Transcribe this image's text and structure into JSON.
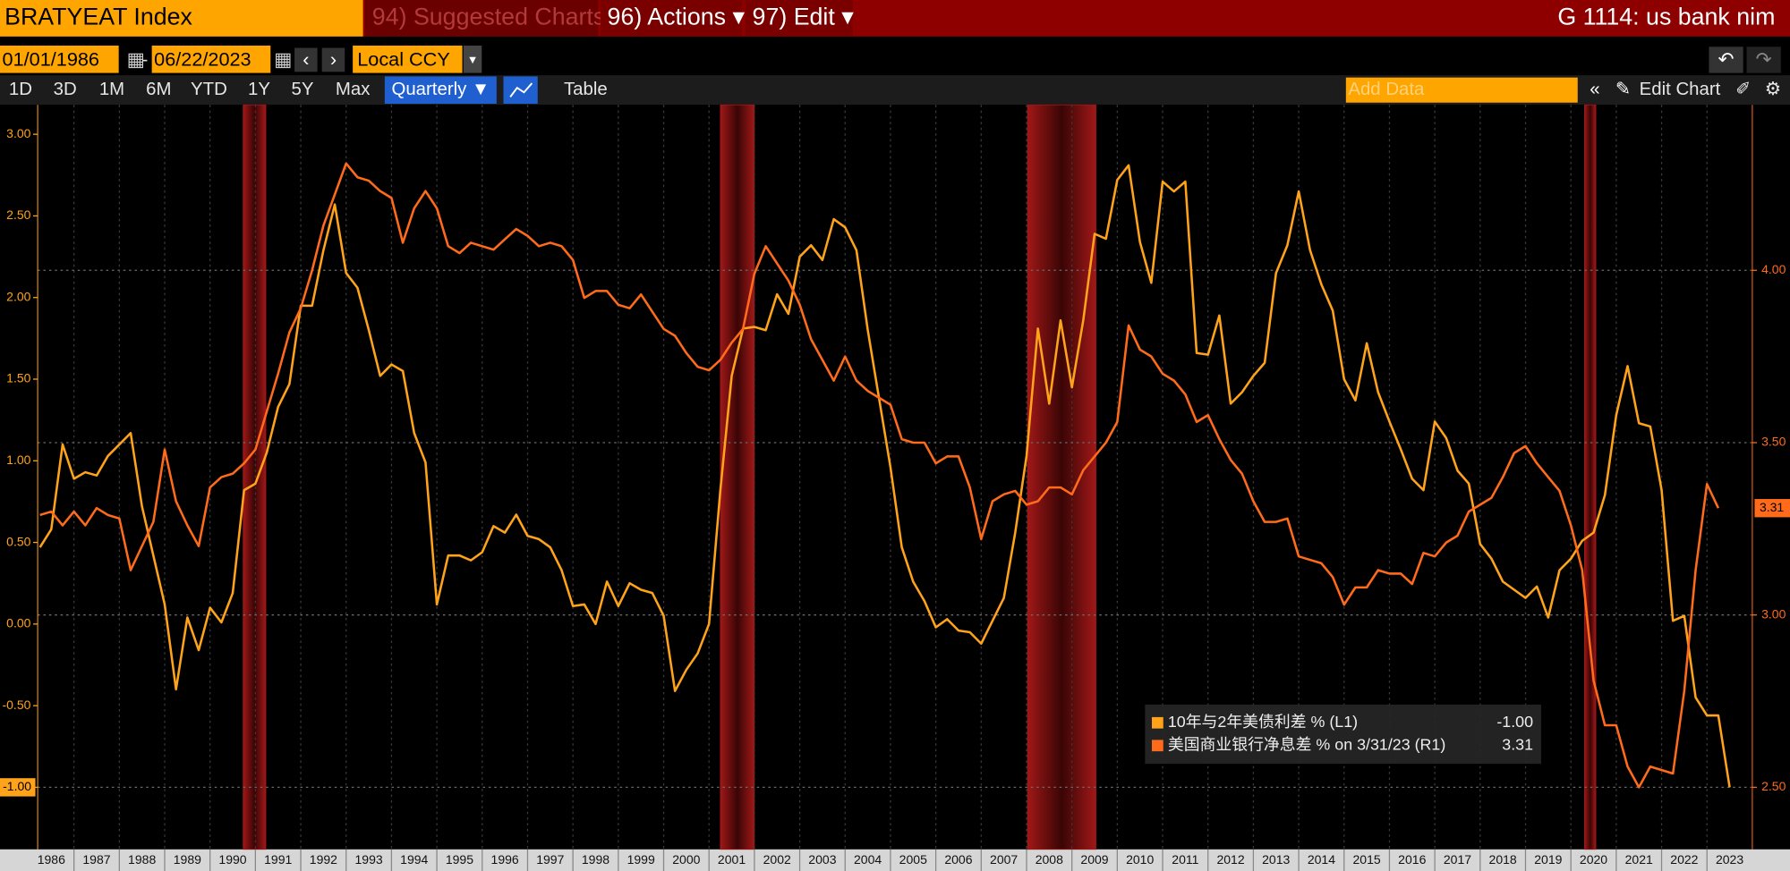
{
  "toolbar": {
    "ticker": "BRATYEAT Index",
    "suggested": "94) Suggested Charts",
    "actions": "96) Actions ▾",
    "edit": "97) Edit ▾",
    "page_title": "G 1114: us bank nim",
    "start_date": "01/01/1986",
    "date_sep": "-",
    "end_date": "06/22/2023",
    "currency": "Local CCY",
    "ranges": [
      "1D",
      "3D",
      "1M",
      "6M",
      "YTD",
      "1Y",
      "5Y",
      "Max"
    ],
    "frequency": "Quarterly ▼",
    "table": "Table",
    "add_data": "Add Data",
    "edit_chart": "Edit Chart"
  },
  "chart_data": {
    "type": "line",
    "xlim": [
      1986.2,
      2024.0
    ],
    "xticks": [
      1986,
      1987,
      1988,
      1989,
      1990,
      1991,
      1992,
      1993,
      1994,
      1995,
      1996,
      1997,
      1998,
      1999,
      2000,
      2001,
      2002,
      2003,
      2004,
      2005,
      2006,
      2007,
      2008,
      2009,
      2010,
      2011,
      2012,
      2013,
      2014,
      2015,
      2016,
      2017,
      2018,
      2019,
      2020,
      2021,
      2022,
      2023
    ],
    "ylim": [
      -1.38,
      3.18
    ],
    "yticks": [
      {
        "value": -1,
        "label": "-1.00"
      },
      {
        "value": -0.5,
        "label": "-0.50"
      },
      {
        "value": 0,
        "label": "0.00"
      },
      {
        "value": 0.5,
        "label": "0.50"
      },
      {
        "value": 1,
        "label": "1.00"
      },
      {
        "value": 1.5,
        "label": "1.50"
      },
      {
        "value": 2,
        "label": "2.00"
      },
      {
        "value": 2.5,
        "label": "2.50"
      },
      {
        "value": 3,
        "label": "3.00"
      }
    ],
    "y2lim": [
      2.32,
      4.48
    ],
    "y2ticks": [
      {
        "value": 2.5,
        "label": "2.50"
      },
      {
        "value": 3,
        "label": "3.00"
      },
      {
        "value": 3.5,
        "label": "3.50"
      },
      {
        "value": 4,
        "label": "4.00"
      }
    ],
    "grid": "y2",
    "legend": "lower right",
    "recessions": [
      [
        1990.73,
        1991.23
      ],
      [
        2001.25,
        2002.0
      ],
      [
        2008.02,
        2009.53
      ],
      [
        2020.3,
        2020.55
      ]
    ],
    "recession_color": "#a01818",
    "series": [
      {
        "name": "10年与2年美债利差 % (L1)",
        "color": "#ffa31a",
        "axis": "y",
        "last_label": "-1.00",
        "x": [
          1986.25,
          1986.5,
          1986.75,
          1987,
          1987.25,
          1987.5,
          1987.75,
          1988.25,
          1988.5,
          1989,
          1989.25,
          1989.5,
          1989.75,
          1990,
          1990.25,
          1990.5,
          1990.75,
          1991,
          1991.25,
          1991.5,
          1991.75,
          1992,
          1992.25,
          1992.5,
          1992.75,
          1993,
          1993.25,
          1993.5,
          1993.75,
          1994,
          1994.25,
          1994.5,
          1994.75,
          1995,
          1995.25,
          1995.5,
          1995.75,
          1996,
          1996.25,
          1996.5,
          1996.75,
          1997,
          1997.25,
          1997.5,
          1997.75,
          1998,
          1998.25,
          1998.5,
          1998.75,
          1999,
          1999.25,
          1999.5,
          1999.75,
          2000,
          2000.25,
          2000.5,
          2000.75,
          2001,
          2001.25,
          2001.5,
          2001.75,
          2002,
          2002.25,
          2002.5,
          2002.75,
          2003,
          2003.25,
          2003.5,
          2003.75,
          2004,
          2004.25,
          2004.5,
          2004.75,
          2005,
          2005.25,
          2005.5,
          2005.75,
          2006,
          2006.25,
          2006.5,
          2006.75,
          2007,
          2007.25,
          2007.5,
          2007.75,
          2008,
          2008.25,
          2008.5,
          2008.75,
          2009,
          2009.25,
          2009.5,
          2009.75,
          2010,
          2010.25,
          2010.5,
          2010.75,
          2011,
          2011.25,
          2011.5,
          2011.75,
          2012,
          2012.25,
          2012.5,
          2012.75,
          2013,
          2013.25,
          2013.5,
          2013.75,
          2014,
          2014.25,
          2014.5,
          2014.75,
          2015,
          2015.25,
          2015.5,
          2015.75,
          2016,
          2016.25,
          2016.5,
          2016.75,
          2017,
          2017.25,
          2017.5,
          2017.75,
          2018,
          2018.25,
          2018.5,
          2018.75,
          2019,
          2019.25,
          2019.5,
          2019.75,
          2020,
          2020.25,
          2020.5,
          2020.75,
          2021,
          2021.25,
          2021.5,
          2021.75,
          2022,
          2022.25,
          2022.5,
          2022.75,
          2023,
          2023.25,
          2023.5
        ],
        "values": [
          0.47,
          0.58,
          1.1,
          0.89,
          0.93,
          0.91,
          1.03,
          1.17,
          0.72,
          0.12,
          -0.4,
          0.04,
          -0.16,
          0.1,
          0.01,
          0.19,
          0.82,
          0.86,
          1.05,
          1.33,
          1.47,
          1.95,
          1.95,
          2.29,
          2.57,
          2.15,
          2.06,
          1.8,
          1.52,
          1.59,
          1.55,
          1.17,
          0.99,
          0.12,
          0.42,
          0.42,
          0.39,
          0.44,
          0.6,
          0.56,
          0.67,
          0.54,
          0.52,
          0.47,
          0.33,
          0.11,
          0.12,
          0.0,
          0.26,
          0.11,
          0.25,
          0.21,
          0.19,
          0.05,
          -0.41,
          -0.28,
          -0.18,
          0.0,
          0.82,
          1.52,
          1.81,
          1.82,
          1.8,
          2.02,
          1.9,
          2.25,
          2.32,
          2.23,
          2.48,
          2.43,
          2.29,
          1.8,
          1.38,
          0.96,
          0.47,
          0.26,
          0.14,
          -0.02,
          0.03,
          -0.04,
          -0.05,
          -0.12,
          0.02,
          0.16,
          0.56,
          1.03,
          1.81,
          1.35,
          1.86,
          1.45,
          1.86,
          2.39,
          2.36,
          2.72,
          2.81,
          2.34,
          2.09,
          2.71,
          2.65,
          2.71,
          1.66,
          1.65,
          1.89,
          1.35,
          1.42,
          1.52,
          1.6,
          2.15,
          2.32,
          2.65,
          2.29,
          2.08,
          1.92,
          1.5,
          1.37,
          1.72,
          1.42,
          1.24,
          1.07,
          0.89,
          0.82,
          1.24,
          1.14,
          0.94,
          0.86,
          0.49,
          0.4,
          0.26,
          0.21,
          0.16,
          0.23,
          0.04,
          0.33,
          0.4,
          0.51,
          0.56,
          0.79,
          1.28,
          1.58,
          1.23,
          1.21,
          0.82,
          0.02,
          0.05,
          -0.45,
          -0.56,
          -0.56,
          -1.0
        ]
      },
      {
        "name": "美国商业银行净息差 % on 3/31/23 (R1)",
        "color": "#ff6b1a",
        "axis": "y2",
        "last_label": "3.31",
        "x": [
          1986.25,
          1986.5,
          1986.75,
          1987,
          1987.25,
          1987.5,
          1987.75,
          1988,
          1988.25,
          1988.5,
          1988.75,
          1989,
          1989.25,
          1989.5,
          1989.75,
          1990,
          1990.25,
          1990.5,
          1990.75,
          1991,
          1991.25,
          1991.5,
          1991.75,
          1992,
          1992.25,
          1992.5,
          1992.75,
          1993,
          1993.25,
          1993.5,
          1993.75,
          1994,
          1994.25,
          1994.5,
          1994.75,
          1995,
          1995.25,
          1995.5,
          1995.75,
          1996,
          1996.25,
          1996.5,
          1996.75,
          1997,
          1997.25,
          1997.5,
          1997.75,
          1998,
          1998.25,
          1998.5,
          1998.75,
          1999,
          1999.25,
          1999.5,
          1999.75,
          2000,
          2000.25,
          2000.5,
          2000.75,
          2001,
          2001.25,
          2001.5,
          2001.75,
          2002,
          2002.25,
          2002.5,
          2002.75,
          2003,
          2003.25,
          2003.5,
          2003.75,
          2004,
          2004.25,
          2004.5,
          2004.75,
          2005,
          2005.25,
          2005.5,
          2005.75,
          2006,
          2006.25,
          2006.5,
          2006.75,
          2007,
          2007.25,
          2007.5,
          2007.75,
          2008,
          2008.25,
          2008.5,
          2008.75,
          2009,
          2009.25,
          2009.5,
          2009.75,
          2010,
          2010.25,
          2010.5,
          2010.75,
          2011,
          2011.25,
          2011.5,
          2011.75,
          2012,
          2012.25,
          2012.5,
          2012.75,
          2013,
          2013.25,
          2013.5,
          2013.75,
          2014,
          2014.25,
          2014.5,
          2014.75,
          2015,
          2015.25,
          2015.5,
          2015.75,
          2016,
          2016.25,
          2016.5,
          2016.75,
          2017,
          2017.25,
          2017.5,
          2017.75,
          2018,
          2018.25,
          2018.5,
          2018.75,
          2019,
          2019.25,
          2019.5,
          2019.75,
          2020,
          2020.25,
          2020.5,
          2020.75,
          2021,
          2021.25,
          2021.5,
          2021.75,
          2022,
          2022.25,
          2022.5,
          2022.75,
          2023,
          2023.25
        ],
        "values": [
          3.29,
          3.3,
          3.26,
          3.3,
          3.26,
          3.31,
          3.29,
          3.28,
          3.13,
          3.2,
          3.27,
          3.48,
          3.33,
          3.26,
          3.2,
          3.37,
          3.4,
          3.41,
          3.44,
          3.48,
          3.59,
          3.7,
          3.82,
          3.89,
          4.0,
          4.13,
          4.22,
          4.31,
          4.27,
          4.26,
          4.23,
          4.21,
          4.08,
          4.18,
          4.23,
          4.18,
          4.07,
          4.05,
          4.08,
          4.07,
          4.06,
          4.09,
          4.12,
          4.1,
          4.07,
          4.08,
          4.07,
          4.03,
          3.92,
          3.94,
          3.94,
          3.9,
          3.89,
          3.93,
          3.88,
          3.83,
          3.81,
          3.76,
          3.72,
          3.71,
          3.74,
          3.79,
          3.83,
          3.99,
          4.07,
          4.02,
          3.97,
          3.9,
          3.8,
          3.74,
          3.68,
          3.75,
          3.68,
          3.65,
          3.63,
          3.61,
          3.51,
          3.5,
          3.5,
          3.44,
          3.46,
          3.46,
          3.37,
          3.22,
          3.33,
          3.35,
          3.36,
          3.32,
          3.33,
          3.37,
          3.37,
          3.35,
          3.42,
          3.46,
          3.5,
          3.56,
          3.84,
          3.77,
          3.75,
          3.7,
          3.68,
          3.64,
          3.56,
          3.58,
          3.51,
          3.45,
          3.41,
          3.33,
          3.27,
          3.27,
          3.28,
          3.17,
          3.16,
          3.15,
          3.11,
          3.03,
          3.08,
          3.08,
          3.13,
          3.12,
          3.12,
          3.09,
          3.18,
          3.17,
          3.21,
          3.23,
          3.3,
          3.32,
          3.34,
          3.4,
          3.47,
          3.49,
          3.44,
          3.4,
          3.36,
          3.26,
          3.13,
          2.81,
          2.68,
          2.68,
          2.56,
          2.5,
          2.56,
          2.55,
          2.54,
          2.78,
          3.13,
          3.38,
          3.31
        ]
      }
    ]
  }
}
